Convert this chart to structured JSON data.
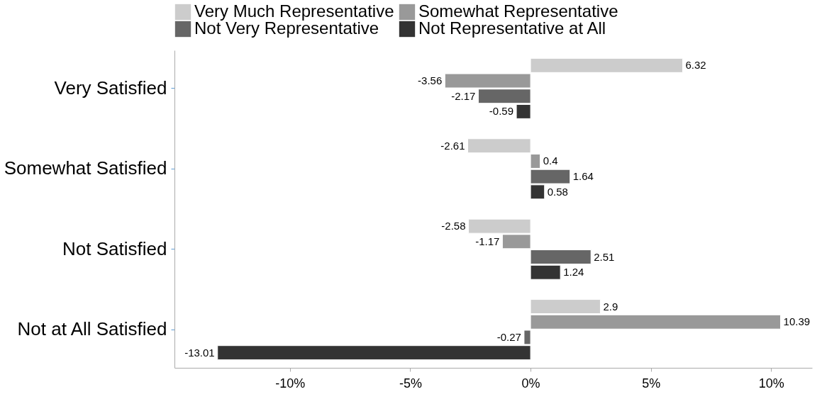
{
  "chart_data": {
    "type": "bar",
    "orientation": "horizontal",
    "categories": [
      "Very Satisfied",
      "Somewhat Satisfied",
      "Not Satisfied",
      "Not at All Satisfied"
    ],
    "series": [
      {
        "name": "Very Much Representative",
        "color": "#cccccc",
        "values": [
          6.32,
          -2.61,
          -2.58,
          2.9
        ]
      },
      {
        "name": "Somewhat Representative",
        "color": "#999999",
        "values": [
          -3.56,
          0.4,
          -1.17,
          10.39
        ]
      },
      {
        "name": "Not Very Representative",
        "color": "#666666",
        "values": [
          -2.17,
          1.64,
          2.51,
          -0.27
        ]
      },
      {
        "name": "Not Representative at All",
        "color": "#333333",
        "values": [
          -0.59,
          0.58,
          1.24,
          -13.01
        ]
      }
    ],
    "xlim": [
      -14.8,
      11.7
    ],
    "xticks": [
      {
        "value": -10,
        "label": "-10%"
      },
      {
        "value": -5,
        "label": "-5%"
      },
      {
        "value": 0,
        "label": "0%"
      },
      {
        "value": 5,
        "label": "5%"
      },
      {
        "value": 10,
        "label": "10%"
      }
    ],
    "data_labels": true,
    "grid": false,
    "legend": "top"
  }
}
